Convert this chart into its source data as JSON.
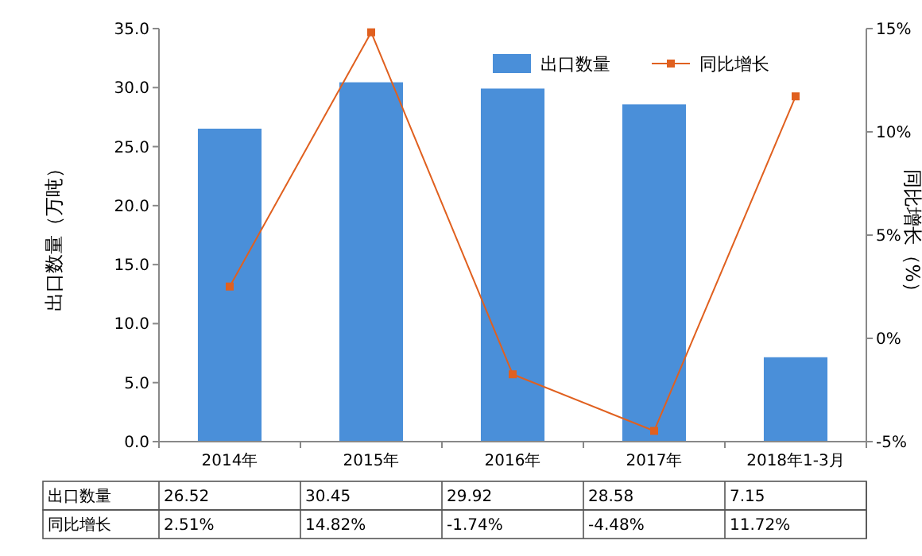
{
  "chart_data": {
    "type": "bar",
    "categories": [
      "2014年",
      "2015年",
      "2016年",
      "2017年",
      "2018年1-3月"
    ],
    "ylabel": "出口数量（万吨）",
    "y2label": "同比增长（%）",
    "ylim": [
      0,
      35
    ],
    "yticks": [
      {
        "value": 0,
        "label": "0.0"
      },
      {
        "value": 5,
        "label": "5.0"
      },
      {
        "value": 10,
        "label": "10.0"
      },
      {
        "value": 15,
        "label": "15.0"
      },
      {
        "value": 20,
        "label": "20.0"
      },
      {
        "value": 25,
        "label": "25.0"
      },
      {
        "value": 30,
        "label": "30.0"
      },
      {
        "value": 35,
        "label": "35.0"
      }
    ],
    "y2lim": [
      -5,
      15
    ],
    "y2ticks": [
      {
        "value": -5,
        "label": "-5%"
      },
      {
        "value": 0,
        "label": "0%"
      },
      {
        "value": 5,
        "label": "5%"
      },
      {
        "value": 10,
        "label": "10%"
      },
      {
        "value": 15,
        "label": "15%"
      }
    ],
    "legend": "top right",
    "marker": "square",
    "series": [
      {
        "name": "出口数量",
        "color": "#4a8fd9",
        "values": [
          26.52,
          30.45,
          29.92,
          28.58,
          7.15
        ],
        "value_labels": [
          "26.52",
          "30.45",
          "29.92",
          "28.58",
          "7.15"
        ]
      },
      {
        "name": "同比增长",
        "type": "line",
        "axis": "y2",
        "color": "#e0601f",
        "values": [
          2.51,
          14.82,
          -1.74,
          -4.48,
          11.72
        ],
        "value_labels": [
          "2.51%",
          "14.82%",
          "-1.74%",
          "-4.48%",
          "11.72%"
        ]
      }
    ]
  }
}
